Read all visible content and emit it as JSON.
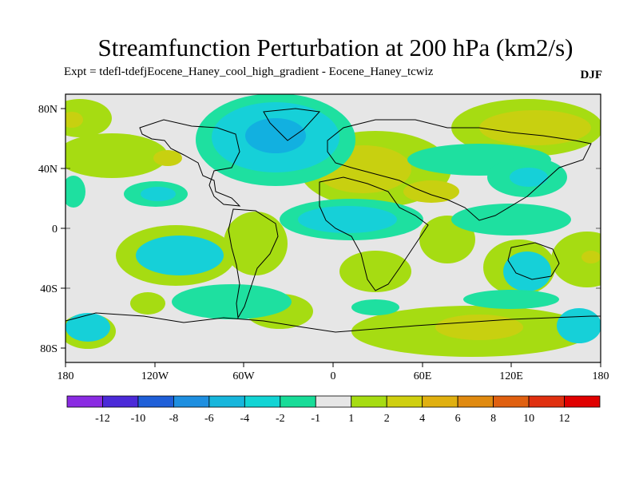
{
  "title": "Streamfunction Perturbation at 200 hPa (km2/s)",
  "subtitle": "Expt = tdefl-tdefjEocene_Haney_cool_high_gradient - Eocene_Haney_tcwiz",
  "season": "DJF",
  "axes": {
    "lon_labels": [
      "180",
      "120W",
      "60W",
      "0",
      "60E",
      "120E",
      "180"
    ],
    "lat_labels": [
      "80N",
      "40N",
      "0",
      "40S",
      "80S"
    ]
  },
  "colorbar": {
    "labels": [
      "-12",
      "-10",
      "-8",
      "-6",
      "-4",
      "-2",
      "-1",
      "1",
      "2",
      "4",
      "6",
      "8",
      "10",
      "12"
    ],
    "colors": [
      "#8a2be2",
      "#4b2ad8",
      "#1f5fd8",
      "#1e8fe0",
      "#17b6dc",
      "#12d4d4",
      "#18dc98",
      "#e6e6e6",
      "#a6dc12",
      "#cfcf10",
      "#e0b010",
      "#e08a10",
      "#e06010",
      "#e03010",
      "#e00000"
    ]
  },
  "map": {
    "base_color": "#e6e6e6",
    "legend_colors": {
      "neg_small": "#1ee0a0",
      "neg_mid": "#16d0d8",
      "neg_large": "#12b0e0",
      "pos_small": "#a6dc12",
      "pos_mid": "#c8d010",
      "pos_large": "#d8b410"
    }
  }
}
